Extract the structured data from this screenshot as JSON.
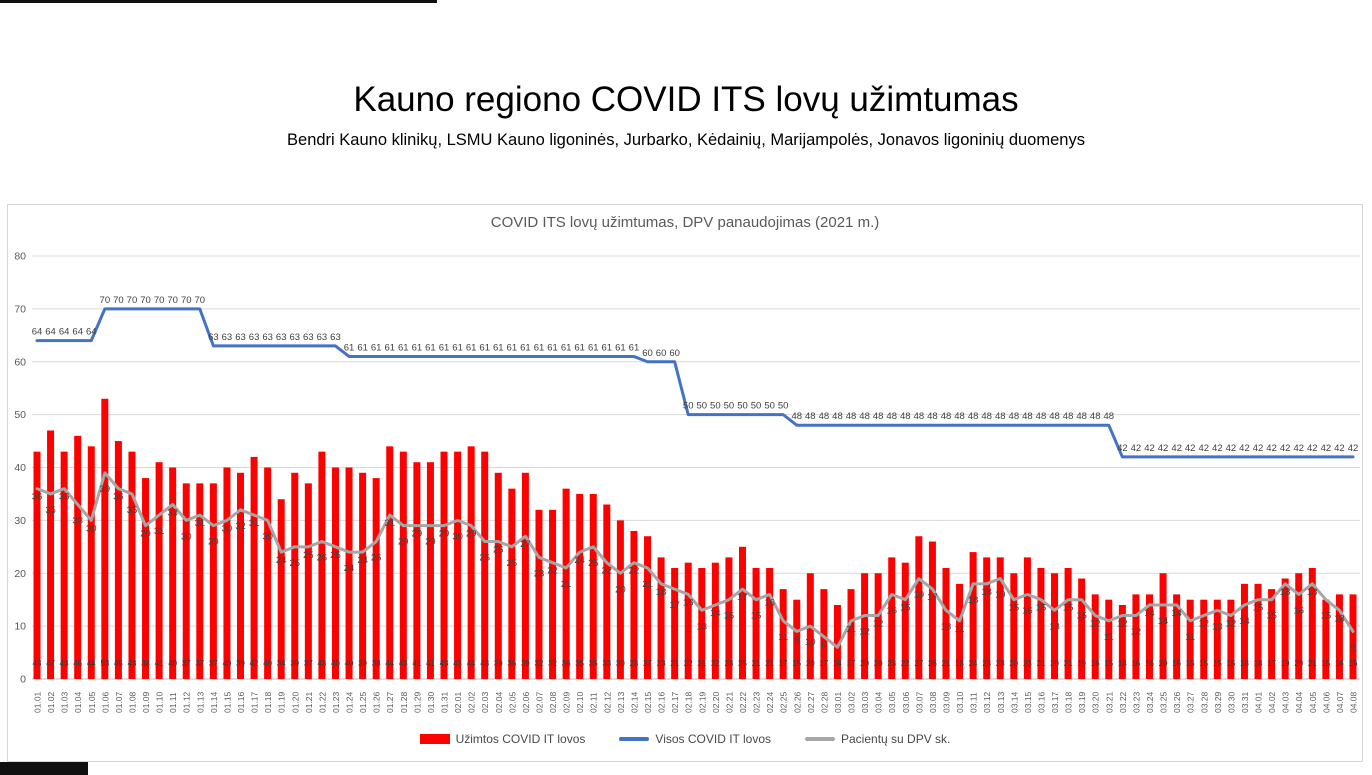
{
  "page": {
    "title": "Kauno regiono COVID ITS lovų užimtumas",
    "subtitle": "Bendri Kauno klinikų, LSMU Kauno ligoninės, Jurbarko, Kėdainių, Marijampolės, Jonavos ligoninių duomenys"
  },
  "chart_data": {
    "type": "bar",
    "subtype": "combo-bar-line",
    "title": "COVID ITS lovų užimtumas, DPV panaudojimas (2021 m.)",
    "ylim": [
      0,
      80
    ],
    "ytick_step": 10,
    "yticks": [
      0,
      10,
      20,
      30,
      40,
      50,
      60,
      70,
      80
    ],
    "grid": true,
    "legend_position": "bottom",
    "data_labels": true,
    "categories": [
      "01.01",
      "01.02",
      "01.03",
      "01.04",
      "01.05",
      "01.06",
      "01.07",
      "01.08",
      "01.09",
      "01.10",
      "01.11",
      "01.12",
      "01.13",
      "01.14",
      "01.15",
      "01.16",
      "01.17",
      "01.18",
      "01.19",
      "01.20",
      "01.21",
      "01.22",
      "01.23",
      "01.24",
      "01.25",
      "01.26",
      "01.27",
      "01.28",
      "01.29",
      "01.30",
      "01.31",
      "02.01",
      "02.02",
      "02.03",
      "02.04",
      "02.05",
      "02.06",
      "02.07",
      "02.08",
      "02.09",
      "02.10",
      "02.11",
      "02.12",
      "02.13",
      "02.14",
      "02.15",
      "02.16",
      "02.17",
      "02.18",
      "02.19",
      "02.20",
      "02.21",
      "02.22",
      "02.23",
      "02.24",
      "02.25",
      "02.26",
      "02.27",
      "02.28",
      "03.01",
      "03.02",
      "03.03",
      "03.04",
      "03.05",
      "03.06",
      "03.07",
      "03.08",
      "03.09",
      "03.10",
      "03.11",
      "03.12",
      "03.13",
      "03.14",
      "03.15",
      "03.16",
      "03.17",
      "03.18",
      "03.19",
      "03.20",
      "03.21",
      "03.22",
      "03.23",
      "03.24",
      "03.25",
      "03.26",
      "03.27",
      "03.28",
      "03.29",
      "03.30",
      "03.31",
      "04.01",
      "04.02",
      "04.03",
      "04.04",
      "04.05",
      "04.06",
      "04.07",
      "04.08"
    ],
    "series": [
      {
        "name": "Užimtos COVID IT lovos",
        "type": "bar",
        "color": "#FF0000",
        "values": [
          43,
          47,
          43,
          46,
          44,
          53,
          45,
          43,
          38,
          41,
          40,
          37,
          37,
          37,
          40,
          39,
          42,
          40,
          34,
          39,
          37,
          43,
          40,
          40,
          39,
          38,
          44,
          43,
          41,
          41,
          43,
          43,
          44,
          43,
          39,
          36,
          39,
          32,
          32,
          36,
          35,
          35,
          33,
          30,
          28,
          27,
          23,
          21,
          22,
          21,
          22,
          23,
          25,
          21,
          21,
          17,
          15,
          20,
          17,
          14,
          17,
          20,
          20,
          23,
          22,
          27,
          26,
          21,
          18,
          24,
          23,
          23,
          20,
          23,
          21,
          20,
          21,
          19,
          16,
          15,
          14,
          16,
          16,
          20,
          16,
          15,
          15,
          15,
          15,
          18,
          18,
          17,
          19,
          20,
          21,
          15,
          16,
          16
        ]
      },
      {
        "name": "Visos COVID IT lovos",
        "type": "line",
        "color": "#4472C4",
        "values": [
          64,
          64,
          64,
          64,
          64,
          70,
          70,
          70,
          70,
          70,
          70,
          70,
          70,
          63,
          63,
          63,
          63,
          63,
          63,
          63,
          63,
          63,
          63,
          61,
          61,
          61,
          61,
          61,
          61,
          61,
          61,
          61,
          61,
          61,
          61,
          61,
          61,
          61,
          61,
          61,
          61,
          61,
          61,
          61,
          61,
          60,
          60,
          60,
          50,
          50,
          50,
          50,
          50,
          50,
          50,
          50,
          48,
          48,
          48,
          48,
          48,
          48,
          48,
          48,
          48,
          48,
          48,
          48,
          48,
          48,
          48,
          48,
          48,
          48,
          48,
          48,
          48,
          48,
          48,
          48,
          42,
          42,
          42,
          42,
          42,
          42,
          42,
          42,
          42,
          42,
          42,
          42,
          42,
          42,
          42,
          42,
          42,
          42
        ]
      },
      {
        "name": "Pacientų su DPV sk.",
        "type": "line",
        "color": "#A6A6A6",
        "values": [
          36,
          35,
          36,
          33,
          30,
          39,
          36,
          35,
          29,
          31,
          33,
          30,
          31,
          29,
          30,
          32,
          31,
          30,
          24,
          25,
          25,
          26,
          25,
          24,
          24,
          26,
          31,
          29,
          29,
          29,
          29,
          30,
          29,
          26,
          26,
          25,
          27,
          23,
          22,
          21,
          24,
          25,
          22,
          20,
          22,
          21,
          18,
          17,
          16,
          13,
          14,
          15,
          17,
          15,
          16,
          11,
          9,
          10,
          8,
          6,
          11,
          12,
          12,
          16,
          15,
          19,
          17,
          13,
          11,
          18,
          18,
          19,
          15,
          16,
          15,
          13,
          15,
          15,
          12,
          11,
          12,
          12,
          14,
          14,
          14,
          11,
          12,
          13,
          12,
          14,
          15,
          15,
          18,
          16,
          18,
          15,
          13,
          9
        ]
      }
    ]
  }
}
